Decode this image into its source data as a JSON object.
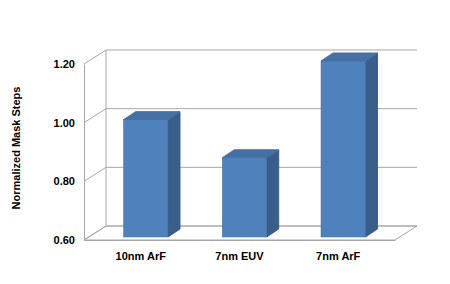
{
  "chart_data": {
    "type": "bar",
    "y_label": "Normalized Mask Steps",
    "categories": [
      "10nm ArF",
      "7nm EUV",
      "7nm ArF"
    ],
    "values": [
      1.0,
      0.87,
      1.2
    ],
    "color": "#4f81bd",
    "ylim": [
      0.6,
      1.2
    ],
    "yticks": [
      {
        "value": 0.6,
        "label": "0.60"
      },
      {
        "value": 0.8,
        "label": "0.80"
      },
      {
        "value": 1.0,
        "label": "1.00"
      },
      {
        "value": 1.2,
        "label": "1.20"
      }
    ],
    "grid": true
  }
}
